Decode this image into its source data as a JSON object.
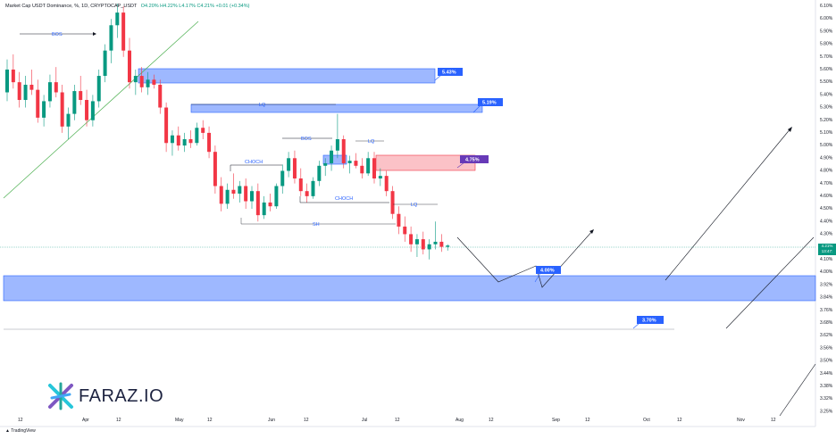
{
  "header": {
    "title": "Market Cap USDT Dominance, %, 1D, CRYPTOCAP_USDT",
    "ohlc": "O4.20% H4.22% L4.17% C4.21% +0.01 (+0.34%)"
  },
  "price_axis": [
    "6.10%",
    "6.00%",
    "5.90%",
    "5.80%",
    "5.70%",
    "5.60%",
    "5.50%",
    "5.40%",
    "5.30%",
    "5.20%",
    "5.10%",
    "5.00%",
    "4.90%",
    "4.80%",
    "4.70%",
    "4.60%",
    "4.50%",
    "4.40%",
    "4.30%",
    "4.20%",
    "4.10%",
    "4.00%",
    "3.92%",
    "3.84%",
    "3.76%",
    "3.68%",
    "3.62%",
    "3.56%",
    "3.50%",
    "3.44%",
    "3.38%",
    "3.32%",
    "3.25%"
  ],
  "time_axis": [
    "12",
    "Apr",
    "12",
    "May",
    "12",
    "Jun",
    "12",
    "Jul",
    "12",
    "Aug",
    "12",
    "Sep",
    "12",
    "Oct",
    "12",
    "Nov",
    "12"
  ],
  "current_price": {
    "value": "4.21%",
    "time": "13:47:"
  },
  "annotations": {
    "bos1": "BOS",
    "lq1": "LQ",
    "bos2": "BOS",
    "lq2": "LQ",
    "choch1": "CHOCH",
    "choch2": "CHOCH",
    "lq3": "LQ",
    "sh": "SH"
  },
  "badges": {
    "b543": "5.43%",
    "b519": "5.19%",
    "b475": "4.75%",
    "b400": "4.00%",
    "b370": "3.70%"
  },
  "logo": {
    "text": "FARAZ.IO"
  },
  "footer": {
    "tradingview": "TradingView"
  },
  "colors": {
    "up": "#089981",
    "down": "#f23645",
    "zone_blue": "#2962ff",
    "zone_red": "#f23645"
  },
  "chart_data": {
    "type": "candlestick",
    "candles": [
      [
        5.42,
        5.68,
        5.35,
        5.6
      ],
      [
        5.6,
        5.72,
        5.45,
        5.5
      ],
      [
        5.5,
        5.58,
        5.3,
        5.36
      ],
      [
        5.36,
        5.55,
        5.3,
        5.48
      ],
      [
        5.48,
        5.6,
        5.4,
        5.44
      ],
      [
        5.44,
        5.52,
        5.18,
        5.22
      ],
      [
        5.22,
        5.4,
        5.15,
        5.35
      ],
      [
        5.35,
        5.56,
        5.3,
        5.5
      ],
      [
        5.5,
        5.62,
        5.38,
        5.42
      ],
      [
        5.42,
        5.48,
        5.1,
        5.15
      ],
      [
        5.15,
        5.3,
        5.05,
        5.25
      ],
      [
        5.25,
        5.48,
        5.2,
        5.43
      ],
      [
        5.43,
        5.55,
        5.32,
        5.36
      ],
      [
        5.36,
        5.44,
        5.15,
        5.2
      ],
      [
        5.2,
        5.4,
        5.15,
        5.35
      ],
      [
        5.35,
        5.6,
        5.3,
        5.55
      ],
      [
        5.55,
        5.8,
        5.5,
        5.75
      ],
      [
        5.75,
        6.0,
        5.65,
        5.95
      ],
      [
        5.95,
        6.12,
        5.85,
        6.05
      ],
      [
        6.05,
        6.1,
        5.7,
        5.75
      ],
      [
        5.75,
        5.85,
        5.45,
        5.5
      ],
      [
        5.5,
        5.6,
        5.4,
        5.55
      ],
      [
        5.55,
        5.62,
        5.42,
        5.46
      ],
      [
        5.46,
        5.58,
        5.4,
        5.52
      ],
      [
        5.52,
        5.56,
        5.45,
        5.48
      ],
      [
        5.48,
        5.52,
        5.25,
        5.3
      ],
      [
        5.3,
        5.34,
        4.95,
        5.02
      ],
      [
        5.02,
        5.12,
        4.92,
        5.08
      ],
      [
        5.08,
        5.15,
        4.96,
        5.0
      ],
      [
        5.0,
        5.1,
        4.95,
        5.05
      ],
      [
        5.05,
        5.12,
        4.98,
        5.02
      ],
      [
        5.02,
        5.18,
        5.0,
        5.14
      ],
      [
        5.14,
        5.2,
        5.05,
        5.1
      ],
      [
        5.1,
        5.15,
        4.9,
        4.95
      ],
      [
        4.95,
        5.0,
        4.62,
        4.68
      ],
      [
        4.68,
        4.75,
        4.48,
        4.54
      ],
      [
        4.54,
        4.7,
        4.5,
        4.65
      ],
      [
        4.65,
        4.78,
        4.58,
        4.62
      ],
      [
        4.62,
        4.72,
        4.55,
        4.68
      ],
      [
        4.68,
        4.74,
        4.5,
        4.56
      ],
      [
        4.56,
        4.68,
        4.5,
        4.64
      ],
      [
        4.64,
        4.7,
        4.4,
        4.45
      ],
      [
        4.45,
        4.6,
        4.42,
        4.55
      ],
      [
        4.55,
        4.62,
        4.48,
        4.52
      ],
      [
        4.52,
        4.7,
        4.5,
        4.68
      ],
      [
        4.68,
        4.85,
        4.62,
        4.8
      ],
      [
        4.8,
        4.95,
        4.75,
        4.9
      ],
      [
        4.9,
        4.96,
        4.7,
        4.74
      ],
      [
        4.74,
        4.82,
        4.6,
        4.64
      ],
      [
        4.64,
        4.7,
        4.55,
        4.6
      ],
      [
        4.6,
        4.75,
        4.58,
        4.72
      ],
      [
        4.72,
        4.88,
        4.68,
        4.84
      ],
      [
        4.84,
        4.9,
        4.76,
        4.86
      ],
      [
        4.86,
        5.0,
        4.8,
        4.96
      ],
      [
        4.96,
        5.25,
        4.9,
        5.05
      ],
      [
        5.05,
        5.08,
        4.82,
        4.86
      ],
      [
        4.86,
        4.92,
        4.78,
        4.88
      ],
      [
        4.88,
        4.94,
        4.82,
        4.84
      ],
      [
        4.84,
        4.9,
        4.74,
        4.78
      ],
      [
        4.78,
        4.95,
        4.76,
        4.9
      ],
      [
        4.9,
        4.95,
        4.7,
        4.74
      ],
      [
        4.74,
        4.82,
        4.68,
        4.76
      ],
      [
        4.76,
        4.8,
        4.6,
        4.64
      ],
      [
        4.64,
        4.68,
        4.42,
        4.46
      ],
      [
        4.46,
        4.52,
        4.3,
        4.36
      ],
      [
        4.36,
        4.44,
        4.24,
        4.3
      ],
      [
        4.3,
        4.36,
        4.16,
        4.22
      ],
      [
        4.22,
        4.3,
        4.12,
        4.26
      ],
      [
        4.26,
        4.32,
        4.14,
        4.18
      ],
      [
        4.18,
        4.26,
        4.1,
        4.22
      ],
      [
        4.22,
        4.4,
        4.18,
        4.24
      ],
      [
        4.24,
        4.3,
        4.16,
        4.2
      ],
      [
        4.2,
        4.22,
        4.17,
        4.21
      ]
    ]
  }
}
